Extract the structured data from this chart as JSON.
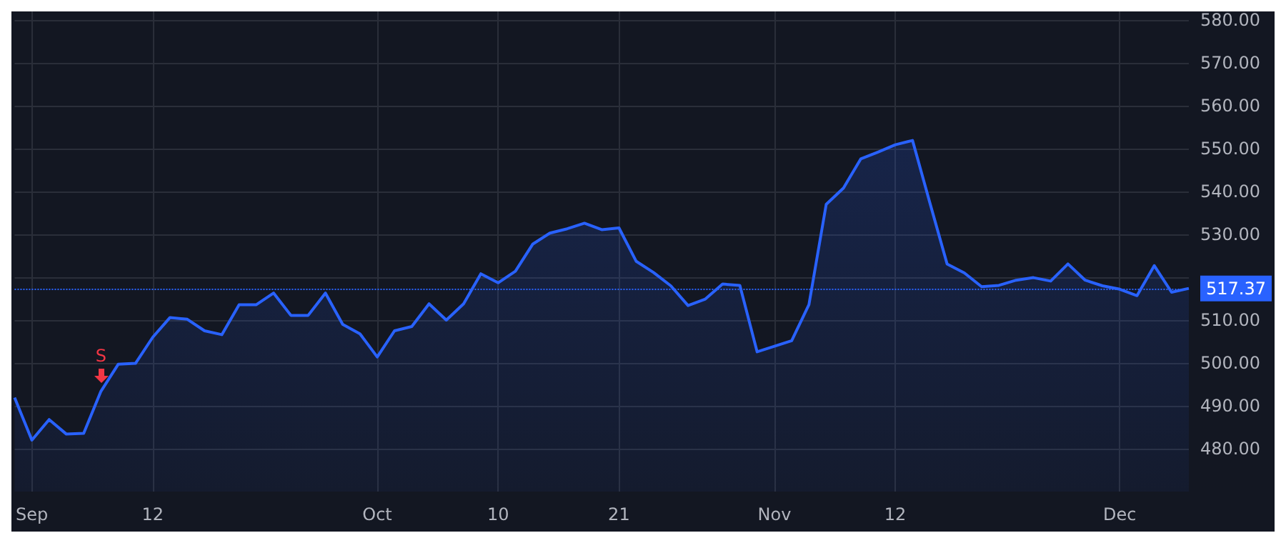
{
  "chart_data": {
    "type": "area",
    "categories": [
      null,
      "Sep",
      null,
      null,
      null,
      null,
      null,
      null,
      "12",
      null,
      null,
      null,
      null,
      null,
      null,
      null,
      null,
      null,
      null,
      null,
      null,
      "Oct",
      null,
      null,
      null,
      null,
      null,
      null,
      "10",
      null,
      null,
      null,
      null,
      null,
      null,
      "21",
      null,
      null,
      null,
      null,
      null,
      null,
      null,
      null,
      "Nov",
      null,
      null,
      null,
      null,
      null,
      null,
      "12",
      null,
      null,
      null,
      null,
      null,
      null,
      null,
      null,
      null,
      null,
      null,
      null,
      "Dec",
      null,
      null,
      null,
      null
    ],
    "series": [
      {
        "color": "#2962ff",
        "values": [
          491.9,
          482.0,
          486.8,
          483.4,
          483.6,
          493.4,
          499.7,
          499.9,
          506.0,
          510.6,
          510.2,
          507.5,
          506.6,
          513.6,
          513.6,
          516.3,
          511.1,
          511.1,
          516.3,
          509.0,
          506.8,
          501.4,
          507.5,
          508.5,
          513.8,
          510.0,
          513.8,
          520.8,
          518.7,
          521.4,
          527.7,
          530.3,
          531.3,
          532.6,
          531.1,
          531.5,
          523.7,
          521.1,
          518.0,
          513.4,
          514.9,
          518.4,
          518.1,
          502.6,
          503.9,
          505.2,
          513.6,
          537.0,
          540.8,
          547.6,
          549.2,
          550.9,
          551.9,
          537.4,
          523.1,
          521.0,
          517.8,
          518.1,
          519.3,
          519.9,
          519.1,
          523.1,
          519.3,
          518.0,
          517.2,
          515.7,
          522.7,
          516.5,
          517.4
        ]
      }
    ],
    "ylim": [
      470,
      582
    ],
    "yticks": [
      {
        "value": 480,
        "label": "480.00"
      },
      {
        "value": 490,
        "label": "490.00"
      },
      {
        "value": 500,
        "label": "500.00"
      },
      {
        "value": 510,
        "label": "510.00"
      },
      {
        "value": 520,
        "label": null
      },
      {
        "value": 530,
        "label": "530.00"
      },
      {
        "value": 540,
        "label": "540.00"
      },
      {
        "value": 550,
        "label": "550.00"
      },
      {
        "value": 560,
        "label": "560.00"
      },
      {
        "value": 570,
        "label": "570.00"
      },
      {
        "value": 580,
        "label": "580.00"
      }
    ],
    "ref_lines": [
      {
        "axis": "y",
        "value": 517.37,
        "label": "517.37",
        "color": "#2962ff",
        "line_style": "dotted"
      }
    ],
    "annotations": [
      {
        "text": "S",
        "y": 493.4
      }
    ],
    "grid": true,
    "marker": "none",
    "line_style": "solid"
  }
}
